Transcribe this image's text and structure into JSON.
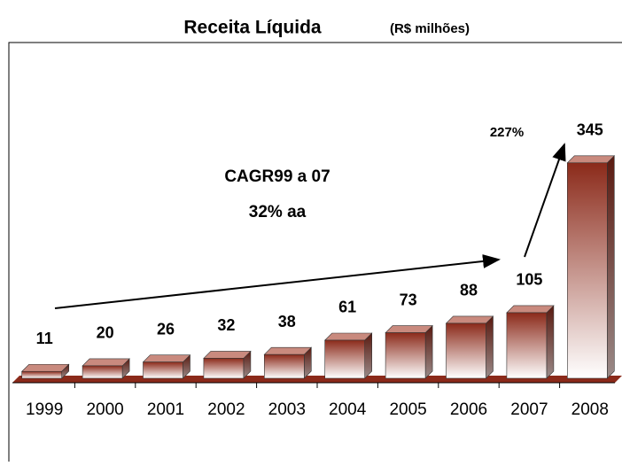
{
  "chart_data": {
    "type": "bar3d",
    "title": "Receita Líquida",
    "subtitle": "(R$ milhões)",
    "categories": [
      "1999",
      "2000",
      "2001",
      "2002",
      "2003",
      "2004",
      "2005",
      "2006",
      "2007",
      "2008"
    ],
    "values": [
      11,
      20,
      26,
      32,
      38,
      61,
      73,
      88,
      105,
      345
    ],
    "color": "#8b2a1a",
    "annotations": [
      "CAGR99 a 07",
      "32% aa",
      "227%"
    ]
  }
}
